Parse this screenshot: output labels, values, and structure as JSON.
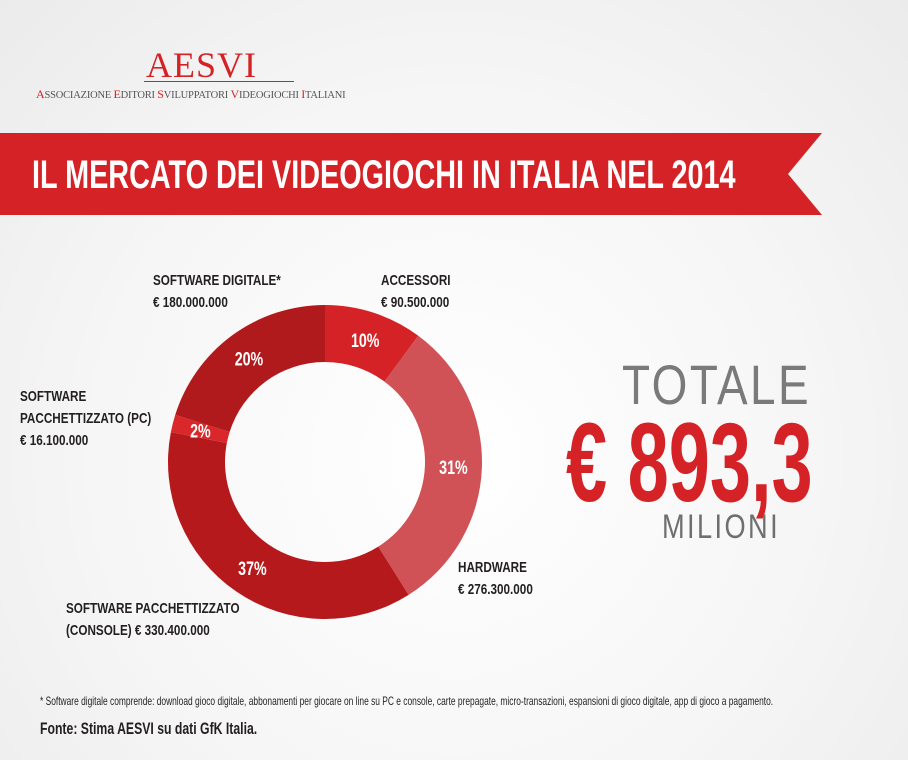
{
  "logo": {
    "name": "AESVI",
    "subtitle_parts": [
      [
        "A",
        "SSOCIAZIONE "
      ],
      [
        "E",
        "DITORI "
      ],
      [
        "S",
        "VILUPPATORI "
      ],
      [
        "V",
        "IDEOGIOCHI "
      ],
      [
        "I",
        "TALIANI"
      ]
    ]
  },
  "banner": {
    "title": "IL MERCATO DEI VIDEOGIOCHI IN ITALIA NEL 2014"
  },
  "total": {
    "label": "TOTALE",
    "value": "€ 893,3",
    "unit": "MILIONI"
  },
  "chart_data": {
    "type": "pie",
    "title": "IL MERCATO DEI VIDEOGIOCHI IN ITALIA NEL 2014",
    "donut": true,
    "start": "12 o'clock, clockwise",
    "slices": [
      {
        "name": "ACCESSORI",
        "value": 90500000,
        "value_label": "€ 90.500.000",
        "percent": 10,
        "percent_label": "10%",
        "color": "#d42226"
      },
      {
        "name": "HARDWARE",
        "value": 276300000,
        "value_label": "€ 276.300.000",
        "percent": 31,
        "percent_label": "31%",
        "color": "#d05257"
      },
      {
        "name": "SOFTWARE PACCHETTIZZATO (CONSOLE)",
        "value": 330400000,
        "value_label": "€ 330.400.000",
        "percent": 37,
        "percent_label": "37%",
        "color": "#b5191b"
      },
      {
        "name": "SOFTWARE PACCHETTIZZATO (PC)",
        "value": 16100000,
        "value_label": "€ 16.100.000",
        "percent": 2,
        "percent_label": "2%",
        "color": "#d9272b"
      },
      {
        "name": "SOFTWARE DIGITALE*",
        "value": 180000000,
        "value_label": "€ 180.000.000",
        "percent": 20,
        "percent_label": "20%",
        "color": "#b11a1c"
      }
    ]
  },
  "labels": {
    "accessori": [
      "ACCESSORI",
      "€ 90.500.000"
    ],
    "hardware": [
      "HARDWARE",
      "€ 276.300.000"
    ],
    "console": [
      "SOFTWARE PACCHETTIZZATO",
      "(CONSOLE) € 330.400.000"
    ],
    "pc": [
      "SOFTWARE",
      "PACCHETTIZZATO (PC)",
      "€ 16.100.000"
    ],
    "digitale": [
      "SOFTWARE DIGITALE*",
      "€ 180.000.000"
    ]
  },
  "footnote": "* Software digitale comprende: download gioco digitale, abbonamenti per giocare on line su PC e console, carte prepagate, micro-transazioni, espansioni di gioco digitale, app di gioco a pagamento.",
  "source": "Fonte: Stima AESVI su dati GfK Italia."
}
